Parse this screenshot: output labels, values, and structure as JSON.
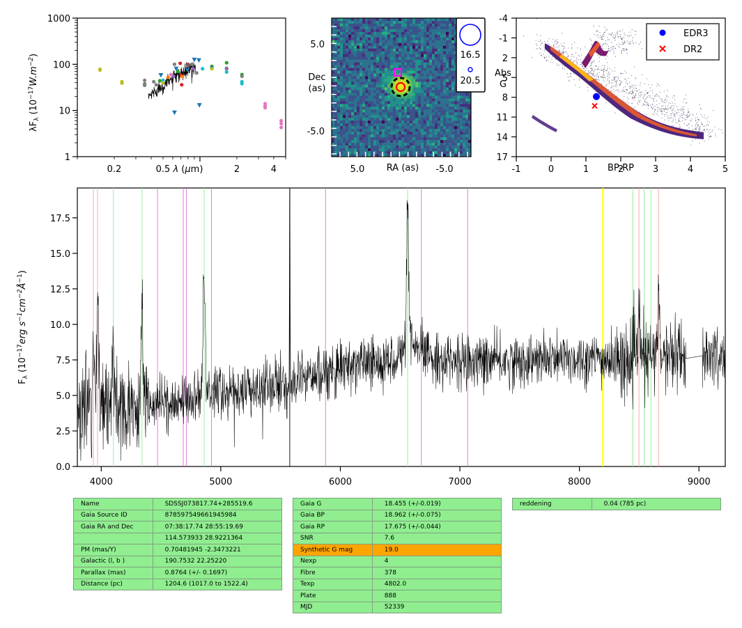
{
  "sed_panel": {
    "ylabel": "λF$_λ$ (10$^{-17}$W.m$^{-2}$)",
    "xlabel": "λ (μm)",
    "yticks": [
      "1",
      "10",
      "100",
      "1000"
    ],
    "xticks": [
      "0.2",
      "0.5",
      "2",
      "4"
    ]
  },
  "chart_data": [
    {
      "type": "scatter",
      "title": "",
      "xlabel": "λ (μm)",
      "ylabel": "λF_λ (10^-17 W.m^-2)",
      "xscale": "log",
      "yscale": "log",
      "xlim": [
        0.1,
        5
      ],
      "ylim": [
        1,
        1000
      ],
      "points": [
        {
          "x": 0.153,
          "y": 78,
          "color": "#bcbd22"
        },
        {
          "x": 0.153,
          "y": 75,
          "color": "#bcbd22"
        },
        {
          "x": 0.231,
          "y": 42,
          "color": "#bcbd22"
        },
        {
          "x": 0.231,
          "y": 39,
          "color": "#bcbd22"
        },
        {
          "x": 0.354,
          "y": 45,
          "color": "#7f7f7f"
        },
        {
          "x": 0.354,
          "y": 38,
          "color": "#7f7f7f"
        },
        {
          "x": 0.354,
          "y": 35,
          "color": "#7f7f7f"
        },
        {
          "x": 0.42,
          "y": 42,
          "color": "#7f7f7f"
        },
        {
          "x": 0.44,
          "y": 36,
          "color": "#7f7f7f"
        },
        {
          "x": 0.47,
          "y": 44,
          "color": "#2ca02c"
        },
        {
          "x": 0.48,
          "y": 58,
          "color": "#1f77b4",
          "marker": "tri"
        },
        {
          "x": 0.5,
          "y": 45,
          "color": "#17becf"
        },
        {
          "x": 0.5,
          "y": 40,
          "color": "#bcbd22"
        },
        {
          "x": 0.55,
          "y": 52,
          "color": "#ff7f0e"
        },
        {
          "x": 0.58,
          "y": 60,
          "color": "#e377c2"
        },
        {
          "x": 0.61,
          "y": 55,
          "color": "#9467bd"
        },
        {
          "x": 0.62,
          "y": 100,
          "color": "#7f7f7f"
        },
        {
          "x": 0.64,
          "y": 80,
          "color": "#1f77b4",
          "marker": "tri"
        },
        {
          "x": 0.66,
          "y": 70,
          "color": "#2ca02c"
        },
        {
          "x": 0.69,
          "y": 105,
          "color": "#d62728"
        },
        {
          "x": 0.7,
          "y": 58,
          "color": "#d62728"
        },
        {
          "x": 0.71,
          "y": 36,
          "color": "#d62728"
        },
        {
          "x": 0.72,
          "y": 54,
          "color": "#ff7f0e"
        },
        {
          "x": 0.62,
          "y": 9,
          "color": "#1f77b4",
          "marker": "tri"
        },
        {
          "x": 0.79,
          "y": 75,
          "color": "#1f77b4",
          "marker": "tri"
        },
        {
          "x": 0.8,
          "y": 100,
          "color": "#8c564b"
        },
        {
          "x": 0.86,
          "y": 100,
          "color": "#7f7f7f"
        },
        {
          "x": 0.88,
          "y": 80,
          "color": "#9467bd"
        },
        {
          "x": 0.9,
          "y": 125,
          "color": "#1f77b4",
          "marker": "tri"
        },
        {
          "x": 0.98,
          "y": 122,
          "color": "#1f77b4",
          "marker": "tri"
        },
        {
          "x": 0.99,
          "y": 13,
          "color": "#1f77b4",
          "marker": "tri"
        },
        {
          "x": 0.94,
          "y": 65,
          "color": "#7f7f7f"
        },
        {
          "x": 1.05,
          "y": 80,
          "color": "#17becf"
        },
        {
          "x": 1.25,
          "y": 90,
          "color": "#2ca02c"
        },
        {
          "x": 1.25,
          "y": 85,
          "color": "#1f77b4"
        },
        {
          "x": 1.25,
          "y": 80,
          "color": "#bcbd22"
        },
        {
          "x": 1.65,
          "y": 108,
          "color": "#2ca02c"
        },
        {
          "x": 1.65,
          "y": 82,
          "color": "#2ca02c"
        },
        {
          "x": 1.65,
          "y": 80,
          "color": "#9467bd"
        },
        {
          "x": 1.65,
          "y": 68,
          "color": "#17becf"
        },
        {
          "x": 2.2,
          "y": 60,
          "color": "#2ca02c"
        },
        {
          "x": 2.2,
          "y": 55,
          "color": "#7f7f7f"
        },
        {
          "x": 2.2,
          "y": 42,
          "color": "#17becf"
        },
        {
          "x": 2.2,
          "y": 38,
          "color": "#17becf"
        },
        {
          "x": 3.4,
          "y": 14,
          "color": "#e377c2"
        },
        {
          "x": 3.4,
          "y": 12.5,
          "color": "#e377c2"
        },
        {
          "x": 3.4,
          "y": 11.5,
          "color": "#e377c2"
        },
        {
          "x": 4.6,
          "y": 6,
          "color": "#e377c2"
        },
        {
          "x": 4.6,
          "y": 5.2,
          "color": "#e377c2"
        },
        {
          "x": 4.6,
          "y": 4.3,
          "color": "#e377c2"
        }
      ]
    },
    {
      "type": "heatmap",
      "title": "",
      "xlabel": "RA (as)",
      "ylabel": "Dec (as)",
      "xlim": [
        8,
        -8
      ],
      "ylim": [
        -8,
        8
      ],
      "xticks": [
        "5.0",
        "-5.0"
      ],
      "yticks": [
        "5.0",
        "-5.0"
      ],
      "legend": [
        "16.5",
        "20.5"
      ],
      "source": {
        "x": 0,
        "y": 0
      }
    },
    {
      "type": "scatter",
      "title": "",
      "xlabel": "BP-RP",
      "ylabel": "Abs G",
      "xlim": [
        -1,
        5
      ],
      "ylim": [
        17,
        -4
      ],
      "xticks": [
        "-1",
        "0",
        "1",
        "2",
        "3",
        "4",
        "5"
      ],
      "yticks": [
        "-4",
        "-1",
        "2",
        "5",
        "8",
        "11",
        "14",
        "17"
      ],
      "legend": [
        "EDR3",
        "DR2"
      ],
      "points": [
        {
          "series": "EDR3",
          "x": 1.3,
          "y": 7.9,
          "color": "#0000ff"
        },
        {
          "series": "DR2",
          "x": 1.25,
          "y": 9.3,
          "color": "#ff0000"
        }
      ]
    },
    {
      "type": "line",
      "title": "",
      "xlabel": "",
      "ylabel": "F$_λ$ (10$^{-17}$erg s$^{-1}$cm$^{-2}$Å$^{-1}$)",
      "xlim": [
        3800,
        9220
      ],
      "ylim": [
        0,
        19.6
      ],
      "xticks": [
        "4000",
        "5000",
        "6000",
        "7000",
        "8000",
        "9000"
      ],
      "yticks": [
        "0.0",
        "2.5",
        "5.0",
        "7.5",
        "10.0",
        "12.5",
        "15.0",
        "17.5"
      ],
      "continuum": [
        [
          3800,
          4.5
        ],
        [
          3900,
          4.6
        ],
        [
          4000,
          4.1
        ],
        [
          4200,
          4.0
        ],
        [
          4400,
          4.4
        ],
        [
          4600,
          4.6
        ],
        [
          4800,
          4.9
        ],
        [
          5000,
          5.1
        ],
        [
          5200,
          5.3
        ],
        [
          5400,
          5.5
        ],
        [
          5600,
          5.9
        ],
        [
          5800,
          6.6
        ],
        [
          6000,
          6.9
        ],
        [
          6200,
          7.3
        ],
        [
          6400,
          7.4
        ],
        [
          6600,
          8.3
        ],
        [
          6800,
          7.6
        ],
        [
          7000,
          7.4
        ],
        [
          7300,
          7.4
        ],
        [
          7600,
          7.4
        ],
        [
          8000,
          7.6
        ],
        [
          8400,
          7.4
        ],
        [
          8800,
          7.9
        ],
        [
          8900,
          7.6
        ],
        [
          9220,
          7.9
        ]
      ],
      "emission_lines": [
        {
          "x": 3934,
          "height": 3.0
        },
        {
          "x": 3970,
          "height": 8.0
        },
        {
          "x": 4101,
          "height": 5.0
        },
        {
          "x": 4340,
          "height": 6.0
        },
        {
          "x": 4861,
          "height": 8.5
        },
        {
          "x": 5577,
          "height": 15.0
        },
        {
          "x": 6563,
          "height": 9.8
        },
        {
          "x": 8662,
          "height": 3.5
        },
        {
          "x": 8500,
          "height": 3.0
        }
      ],
      "vlines": [
        {
          "x": 3934,
          "color": "#f4a3a3"
        },
        {
          "x": 3969,
          "color": "#f4a3a3"
        },
        {
          "x": 4102,
          "color": "#90ee90"
        },
        {
          "x": 4341,
          "color": "#90ee90"
        },
        {
          "x": 4471,
          "color": "#da70d6"
        },
        {
          "x": 4686,
          "color": "#da70d6"
        },
        {
          "x": 4713,
          "color": "#da70d6"
        },
        {
          "x": 4861,
          "color": "#90ee90"
        },
        {
          "x": 4922,
          "color": "#da70d6"
        },
        {
          "x": 5577,
          "color": "#000000"
        },
        {
          "x": 5876,
          "color": "#da70d6"
        },
        {
          "x": 6563,
          "color": "#90ee90"
        },
        {
          "x": 6678,
          "color": "#da70d6"
        },
        {
          "x": 7065,
          "color": "#da70d6"
        },
        {
          "x": 8195,
          "color": "#ffff00"
        },
        {
          "x": 8446,
          "color": "#90ee90"
        },
        {
          "x": 8498,
          "color": "#f4a3a3"
        },
        {
          "x": 8542,
          "color": "#90ee90"
        },
        {
          "x": 8598,
          "color": "#90ee90"
        },
        {
          "x": 8662,
          "color": "#f4a3a3"
        }
      ]
    }
  ],
  "tables": {
    "left": [
      [
        "Name",
        "SDSSJ073817.74+285519.6"
      ],
      [
        "Gaia Source ID",
        "878597549661945984"
      ],
      [
        "Gaia RA and Dec",
        "07:38:17.74    28:55:19.69"
      ],
      [
        "",
        "114.573933    28.9221364"
      ],
      [
        "PM (mas/Y)",
        "0.70481945    -2.3473221"
      ],
      [
        "Galactic (l, b )",
        "190.7532    22.25220"
      ],
      [
        "Parallax (mas)",
        "0.8764 (+/- 0.1697)"
      ],
      [
        "Distance (pc)",
        "1204.6 (1017.0 to 1522.4)"
      ]
    ],
    "middle": [
      [
        "Gaia G",
        "18.455 (+/-0.019)"
      ],
      [
        "Gaia BP",
        "18.962 (+/-0.075)"
      ],
      [
        "Gaia RP",
        "17.675 (+/-0.044)"
      ],
      [
        "SNR",
        "7.6"
      ],
      [
        "Synthetic G mag",
        "19.0"
      ],
      [
        "Nexp",
        "4"
      ],
      [
        "Fibre",
        "378"
      ],
      [
        "Texp",
        "4802.0"
      ],
      [
        "Plate",
        "888"
      ],
      [
        "MJD",
        "52339"
      ]
    ],
    "right": [
      [
        "reddening",
        "0.04 (785 pc)"
      ]
    ]
  }
}
